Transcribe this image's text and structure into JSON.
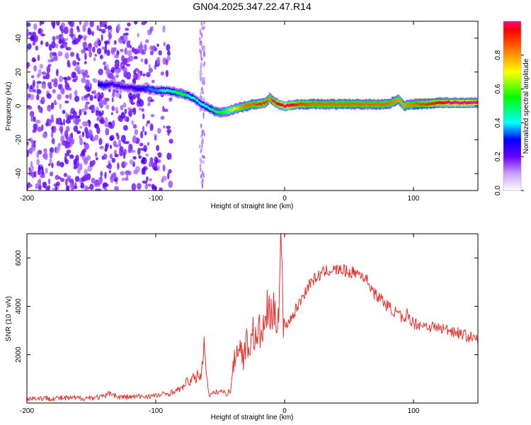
{
  "title": "GN04.2025.347.22.47.R14",
  "colors": {
    "snr_line": "#e8302a",
    "ridge_low": "#00ffff",
    "ridge_mid": "#33ff33",
    "ridge_high": "#ff2020",
    "noise": "#7a1ee0"
  },
  "chart_data": [
    {
      "type": "heatmap",
      "xlabel": "Height of straight line (km)",
      "ylabel": "Frequency (Hz)",
      "xlim": [
        -200,
        150
      ],
      "ylim": [
        -50,
        50
      ],
      "xticks": [
        -200,
        -100,
        0,
        100
      ],
      "yticks": [
        -40,
        -20,
        0,
        20,
        40
      ],
      "grid": false,
      "colorbar": {
        "label": "Normalized spectral amplitude",
        "range": [
          0,
          1
        ],
        "ticks": [
          "0.0",
          "0.2",
          "0.4",
          "0.6",
          "0.8"
        ]
      },
      "ridge": {
        "x": [
          -145,
          -140,
          -135,
          -130,
          -125,
          -120,
          -115,
          -110,
          -105,
          -100,
          -95,
          -90,
          -85,
          -80,
          -75,
          -70,
          -65,
          -60,
          -55,
          -50,
          -45,
          -40,
          -35,
          -30,
          -25,
          -20,
          -15,
          -12,
          -10,
          -5,
          0,
          10,
          20,
          40,
          60,
          80,
          88,
          92,
          100,
          110,
          120,
          130,
          140,
          150
        ],
        "frequency": [
          13,
          12,
          13,
          12,
          11,
          11,
          10,
          10,
          10,
          9,
          9,
          9,
          8,
          7,
          6,
          4,
          1,
          -1,
          -3,
          -4,
          -3,
          -2,
          -1,
          0,
          1,
          1,
          2,
          5,
          3,
          1,
          0,
          1,
          1,
          1,
          1,
          1,
          4,
          0,
          1,
          1,
          2,
          2,
          2,
          2
        ],
        "amplitude": [
          0.3,
          0.3,
          0.25,
          0.25,
          0.25,
          0.25,
          0.3,
          0.3,
          0.35,
          0.35,
          0.4,
          0.45,
          0.5,
          0.55,
          0.45,
          0.45,
          0.4,
          0.45,
          0.5,
          0.55,
          0.6,
          0.7,
          0.8,
          0.85,
          0.85,
          0.9,
          0.9,
          0.8,
          0.9,
          0.95,
          1.0,
          0.9,
          0.85,
          0.85,
          0.85,
          0.85,
          0.8,
          0.8,
          0.85,
          0.9,
          0.95,
          1.0,
          1.0,
          1.0
        ]
      }
    },
    {
      "type": "line",
      "xlabel": "Height of straight line (km)",
      "ylabel": "SNR (10 * v/v)",
      "xlim": [
        -200,
        150
      ],
      "ylim": [
        0,
        7000
      ],
      "xticks": [
        -200,
        -100,
        0,
        100
      ],
      "yticks": [
        2000,
        4000,
        6000
      ],
      "grid": false,
      "series": [
        {
          "x": [
            -200,
            -180,
            -160,
            -140,
            -135,
            -130,
            -120,
            -100,
            -90,
            -80,
            -75,
            -70,
            -65,
            -62,
            -60,
            -58,
            -55,
            -50,
            -45,
            -42,
            -40,
            -38,
            -35,
            -32,
            -30,
            -28,
            -25,
            -22,
            -20,
            -18,
            -15,
            -12,
            -10,
            -8,
            -5,
            -3,
            -2,
            -1,
            0,
            5,
            10,
            15,
            20,
            25,
            30,
            35,
            40,
            45,
            50,
            55,
            60,
            65,
            70,
            75,
            80,
            85,
            90,
            93,
            95,
            100,
            110,
            120,
            130,
            140,
            150
          ],
          "values": [
            200,
            200,
            200,
            250,
            450,
            250,
            250,
            300,
            400,
            600,
            900,
            1000,
            1200,
            2500,
            800,
            300,
            400,
            500,
            400,
            500,
            1500,
            2000,
            2500,
            1800,
            2600,
            2200,
            3000,
            2500,
            3000,
            2800,
            3300,
            4200,
            3200,
            3800,
            3600,
            6800,
            5500,
            3000,
            3200,
            3500,
            4000,
            4500,
            5000,
            5200,
            5400,
            5500,
            5500,
            5500,
            5400,
            5400,
            5300,
            5000,
            4500,
            4300,
            4000,
            3800,
            3600,
            3200,
            3700,
            3300,
            3200,
            3100,
            3000,
            2800,
            2600
          ]
        }
      ]
    }
  ]
}
